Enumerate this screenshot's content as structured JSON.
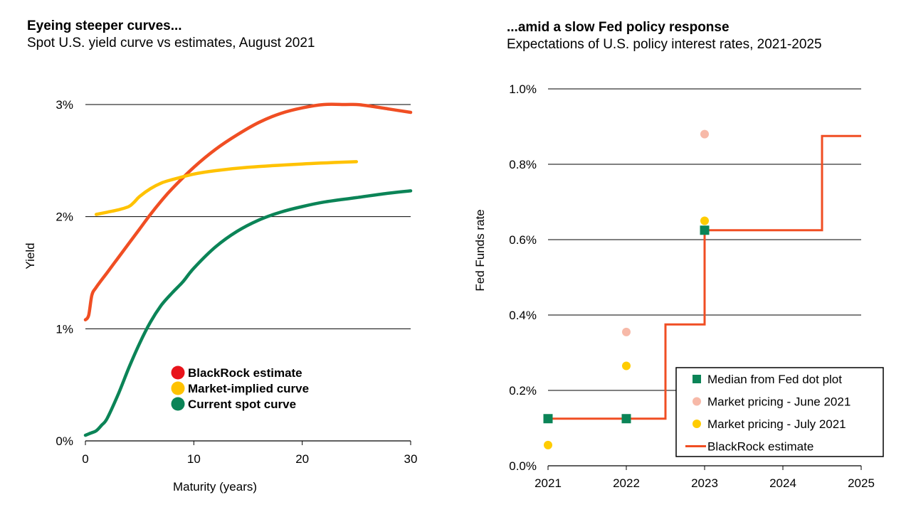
{
  "charts": {
    "left": {
      "title": "Eyeing steeper curves...",
      "subtitle": "Spot U.S. yield curve vs estimates, August 2021"
    },
    "right": {
      "title": "...amid a slow Fed policy response",
      "subtitle": "Expectations of U.S. policy interest rates, 2021-2025"
    }
  },
  "chart_data": [
    {
      "type": "line",
      "title": "Eyeing steeper curves...",
      "subtitle": "Spot U.S. yield curve vs estimates, August 2021",
      "xlabel": "Maturity (years)",
      "ylabel": "Yield",
      "xlim": [
        0,
        30
      ],
      "ylim": [
        0,
        3
      ],
      "xticks": [
        0,
        10,
        20,
        30
      ],
      "xtick_labels": [
        "0",
        "10",
        "20",
        "30"
      ],
      "yticks": [
        0,
        1,
        2,
        3
      ],
      "ytick_labels": [
        "0%",
        "1%",
        "2%",
        "3%"
      ],
      "grid": "horizontal",
      "legend_position": "bottom-center",
      "series": [
        {
          "name": "BlackRock estimate",
          "color": "#F04E23",
          "x": [
            0,
            0.3,
            0.6,
            1,
            2,
            3,
            4,
            5,
            6,
            7,
            8,
            10,
            12,
            14,
            16,
            18,
            20,
            22,
            24,
            25,
            26,
            28,
            30
          ],
          "y": [
            1.08,
            1.12,
            1.3,
            1.37,
            1.5,
            1.63,
            1.76,
            1.89,
            2.02,
            2.14,
            2.25,
            2.44,
            2.6,
            2.73,
            2.84,
            2.92,
            2.97,
            3.0,
            3.0,
            3.0,
            2.99,
            2.96,
            2.93
          ]
        },
        {
          "name": "Market-implied curve",
          "color": "#FFC200",
          "x": [
            1,
            2,
            3,
            4,
            4.5,
            5,
            6,
            7,
            8,
            10,
            12,
            15,
            20,
            25
          ],
          "y": [
            2.02,
            2.04,
            2.06,
            2.09,
            2.13,
            2.18,
            2.25,
            2.3,
            2.33,
            2.38,
            2.41,
            2.44,
            2.47,
            2.49
          ]
        },
        {
          "name": "Current spot curve",
          "color": "#0B8457",
          "x": [
            0,
            0.5,
            1,
            1.5,
            2,
            3,
            4,
            5,
            6,
            7,
            8,
            9,
            10,
            12,
            14,
            16,
            18,
            20,
            22,
            25,
            28,
            30
          ],
          "y": [
            0.05,
            0.07,
            0.09,
            0.14,
            0.2,
            0.41,
            0.65,
            0.87,
            1.06,
            1.21,
            1.32,
            1.42,
            1.54,
            1.73,
            1.87,
            1.97,
            2.04,
            2.09,
            2.13,
            2.17,
            2.21,
            2.23
          ]
        }
      ]
    },
    {
      "type": "line",
      "title": "...amid a slow Fed policy response",
      "subtitle": "Expectations of U.S. policy interest rates, 2021-2025",
      "xlabel": "",
      "ylabel": "Fed Funds rate",
      "xlim": [
        2021,
        2025
      ],
      "ylim": [
        0,
        1.0
      ],
      "xticks": [
        2021,
        2022,
        2023,
        2024,
        2025
      ],
      "xtick_labels": [
        "2021",
        "2022",
        "2023",
        "2024",
        "2025"
      ],
      "yticks": [
        0,
        0.2,
        0.4,
        0.6,
        0.8,
        1.0
      ],
      "ytick_labels": [
        "0.0%",
        "0.2%",
        "0.4%",
        "0.6%",
        "0.8%",
        "1.0%"
      ],
      "grid": "horizontal",
      "legend_position": "bottom-right",
      "series": [
        {
          "name": "Median from Fed dot plot",
          "kind": "square-markers",
          "color": "#0B8457",
          "x": [
            2021,
            2022,
            2023
          ],
          "y": [
            0.125,
            0.125,
            0.625
          ]
        },
        {
          "name": "Market pricing - June 2021",
          "kind": "circle-markers",
          "color": "#F7B9A8",
          "x": [
            2022,
            2023
          ],
          "y": [
            0.355,
            0.88
          ]
        },
        {
          "name": "Market pricing - July 2021",
          "kind": "circle-markers",
          "color": "#FFCC00",
          "x": [
            2021,
            2022,
            2023
          ],
          "y": [
            0.055,
            0.265,
            0.65
          ]
        },
        {
          "name": "BlackRock estimate",
          "kind": "step-line",
          "color": "#F04E23",
          "x": [
            2021,
            2022.5,
            2022.5,
            2023,
            2023,
            2024.5,
            2024.5,
            2025
          ],
          "y": [
            0.125,
            0.125,
            0.375,
            0.375,
            0.625,
            0.625,
            0.875,
            0.875
          ]
        }
      ]
    }
  ]
}
